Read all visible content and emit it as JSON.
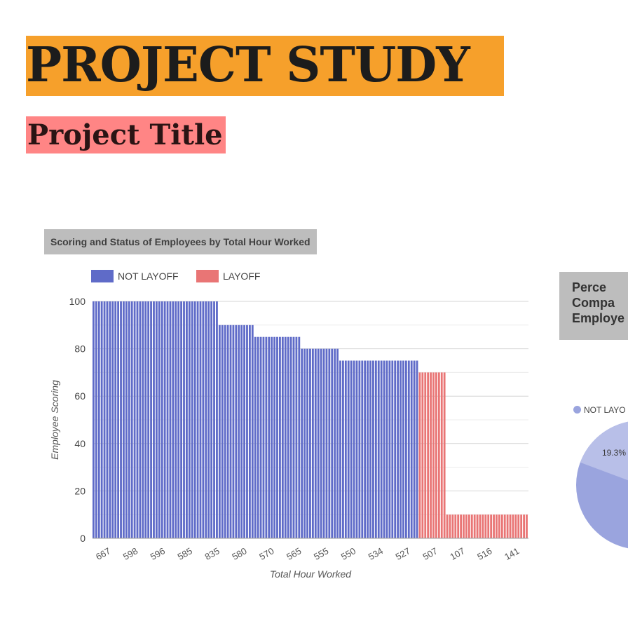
{
  "header": {
    "title": "PROJECT STUDY",
    "subtitle": "Project Title"
  },
  "colors": {
    "title_highlight": "#f6a02b",
    "subtitle_highlight": "#ff8585",
    "not_layoff": "#5f6bc8",
    "layoff": "#e97575"
  },
  "chart_data": [
    {
      "type": "bar",
      "title": "Scoring and Status of Employees by Total Hour Worked",
      "xlabel": "Total Hour Worked",
      "ylabel": "Employee Scoring",
      "ylim": [
        0,
        100
      ],
      "yticks": [
        0,
        20,
        40,
        60,
        80,
        100
      ],
      "grid": true,
      "legend_position": "top-left",
      "xtick_labels": [
        "667",
        "598",
        "596",
        "585",
        "835",
        "580",
        "570",
        "565",
        "555",
        "550",
        "534",
        "527",
        "507",
        "107",
        "516",
        "141"
      ],
      "series": [
        {
          "name": "NOT LAYOFF",
          "color": "#5f6bc8",
          "values": [
            100,
            100,
            100,
            100,
            100,
            100,
            100,
            100,
            100,
            100,
            100,
            100,
            100,
            100,
            100,
            100,
            100,
            100,
            100,
            100,
            100,
            100,
            100,
            100,
            100,
            100,
            100,
            100,
            100,
            100,
            100,
            100,
            100,
            100,
            100,
            100,
            100,
            100,
            100,
            100,
            100,
            100,
            100,
            100,
            100,
            100,
            90,
            90,
            90,
            90,
            90,
            90,
            90,
            90,
            90,
            90,
            90,
            90,
            90,
            85,
            85,
            85,
            85,
            85,
            85,
            85,
            85,
            85,
            85,
            85,
            85,
            85,
            85,
            85,
            85,
            85,
            80,
            80,
            80,
            80,
            80,
            80,
            80,
            80,
            80,
            80,
            80,
            80,
            80,
            80,
            75,
            75,
            75,
            75,
            75,
            75,
            75,
            75,
            75,
            75,
            75,
            75,
            75,
            75,
            75,
            75,
            75,
            75,
            75,
            75,
            75,
            75,
            75,
            75,
            75,
            75,
            75,
            75,
            75
          ]
        },
        {
          "name": "LAYOFF",
          "color": "#e97575",
          "values": [
            70,
            70,
            70,
            70,
            70,
            70,
            70,
            70,
            70,
            70,
            10,
            10,
            10,
            10,
            10,
            10,
            10,
            10,
            10,
            10,
            10,
            10,
            10,
            10,
            10,
            10,
            10,
            10,
            10,
            10,
            10,
            10,
            10,
            10,
            10,
            10,
            10,
            10,
            10,
            10
          ]
        }
      ]
    },
    {
      "type": "pie",
      "title_lines": [
        "Perce",
        "Compa",
        "Employe"
      ],
      "legend": [
        "NOT LAYO"
      ],
      "slice_labels": [
        "19.3%"
      ],
      "series": [
        {
          "name": "NOT LAYOFF",
          "color": "#9aa4de"
        },
        {
          "name": "LAYOFF",
          "color": "#b8bfe8"
        }
      ]
    }
  ]
}
